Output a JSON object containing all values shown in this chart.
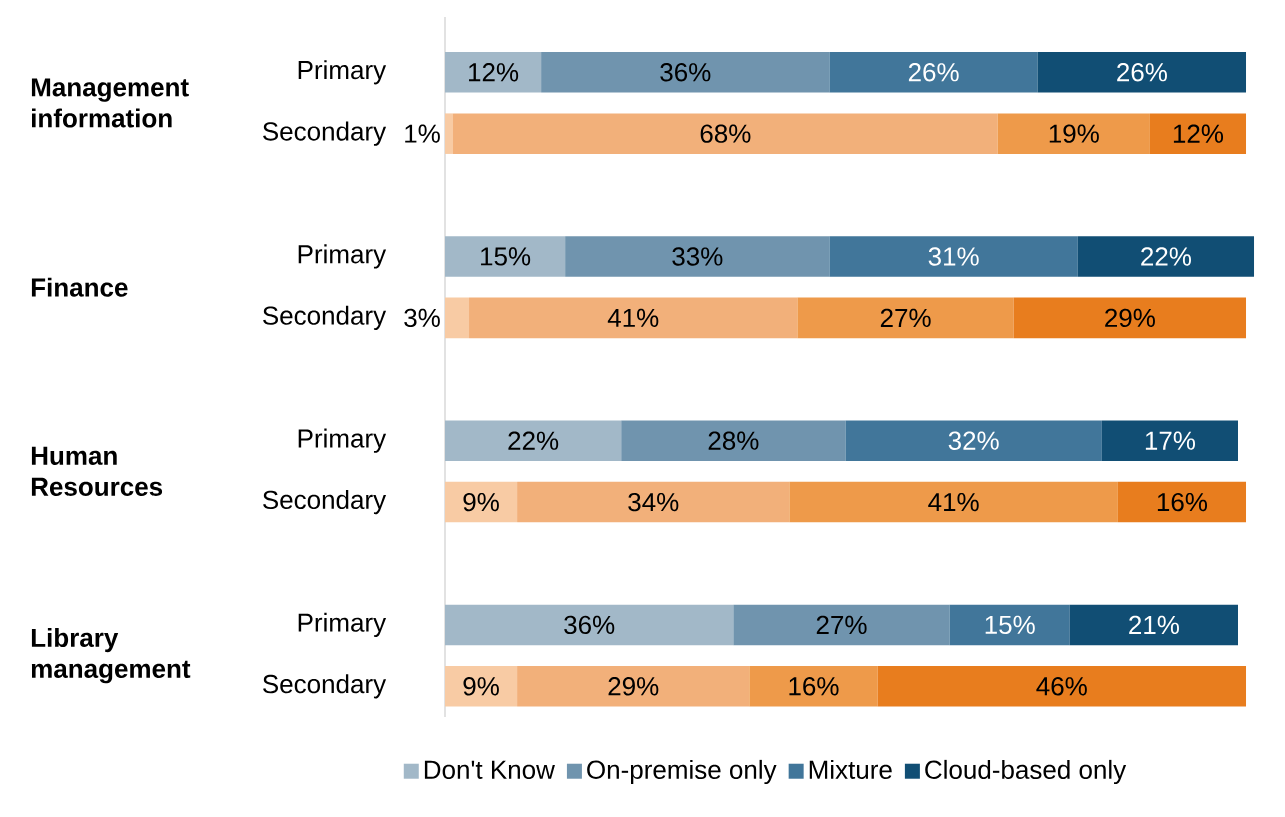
{
  "chart_data": {
    "type": "bar",
    "orientation": "horizontal",
    "stacked": true,
    "legend": "bottom",
    "categories": [
      "Primary",
      "Secondary",
      "Primary",
      "Secondary",
      "Primary",
      "Secondary",
      "Primary",
      "Secondary"
    ],
    "annotations": [
      "Management information",
      "Finance",
      "Human Resources",
      "Library management"
    ],
    "series": [
      {
        "name": "Don't Know",
        "color": "#a2b8c8",
        "colors": [
          "#a2b8c8",
          "#f8cba4",
          "#a2b8c8",
          "#f8cba4",
          "#a2b8c8",
          "#f8cba4",
          "#a2b8c8",
          "#f8cba4"
        ],
        "values": [
          12,
          1,
          15,
          3,
          22,
          9,
          36,
          9
        ],
        "value_labels": [
          "12%",
          "1%",
          "15%",
          "3%",
          "22%",
          "9%",
          "36%",
          "9%"
        ]
      },
      {
        "name": "On-premise only",
        "color": "#7094ae",
        "colors": [
          "#7094ae",
          "#f2b07a",
          "#7094ae",
          "#f2b07a",
          "#7094ae",
          "#f2b07a",
          "#7094ae",
          "#f2b07a"
        ],
        "values": [
          36,
          68,
          33,
          41,
          28,
          34,
          27,
          29
        ],
        "value_labels": [
          "36%",
          "68%",
          "33%",
          "41%",
          "28%",
          "34%",
          "27%",
          "29%"
        ]
      },
      {
        "name": "Mixture",
        "color": "#41769a",
        "colors": [
          "#41769a",
          "#ee9a4a",
          "#41769a",
          "#ee9a4a",
          "#41769a",
          "#ee9a4a",
          "#41769a",
          "#ee9a4a"
        ],
        "values": [
          26,
          19,
          31,
          27,
          32,
          41,
          15,
          16
        ],
        "value_labels": [
          "26%",
          "19%",
          "31%",
          "27%",
          "32%",
          "41%",
          "15%",
          "16%"
        ]
      },
      {
        "name": "Cloud-based only",
        "color": "#114e74",
        "colors": [
          "#114e74",
          "#e87d1e",
          "#114e74",
          "#e87d1e",
          "#114e74",
          "#e87d1e",
          "#114e74",
          "#e87d1e"
        ],
        "values": [
          26,
          12,
          22,
          29,
          17,
          16,
          21,
          46
        ],
        "value_labels": [
          "26%",
          "12%",
          "22%",
          "29%",
          "17%",
          "16%",
          "21%",
          "46%"
        ]
      }
    ]
  }
}
